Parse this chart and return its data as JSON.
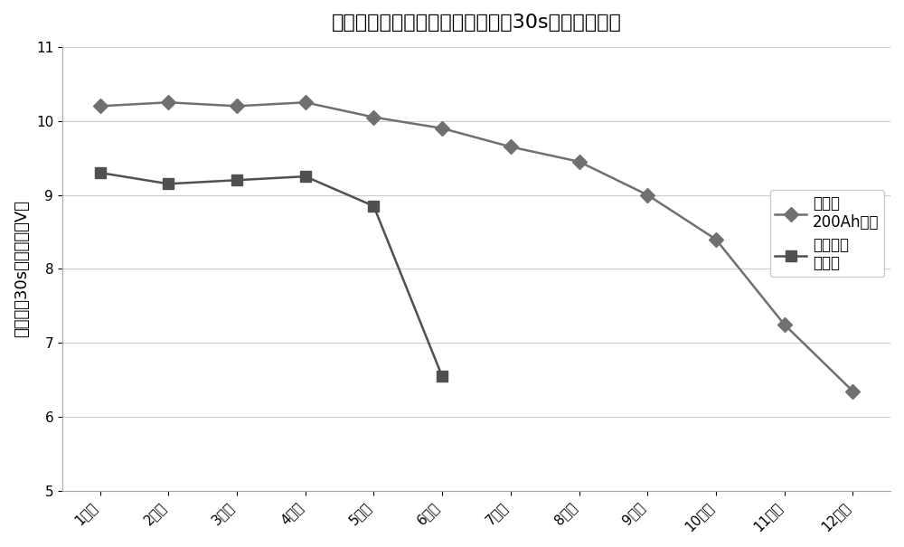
{
  "title": "电池循环放电各单元低温起动放电30s的电压变化图",
  "xlabel": "",
  "ylabel": "单元检查30s放电电压（V）",
  "xlabels": [
    "1单元",
    "2单元",
    "3单元",
    "4单元",
    "5单元",
    "6单元",
    "7单元",
    "8单元",
    "9单元",
    "10单元",
    "11单元",
    "12单元"
  ],
  "ylim": [
    5,
    11
  ],
  "yticks": [
    5,
    6,
    7,
    8,
    9,
    10,
    11
  ],
  "series1_label": "本发明\n200Ah电池",
  "series1_x": [
    1,
    2,
    3,
    4,
    5,
    6,
    7,
    8,
    9,
    10,
    11,
    12
  ],
  "series1_y": [
    10.2,
    10.25,
    10.2,
    10.25,
    10.05,
    9.9,
    9.65,
    9.45,
    9.0,
    8.4,
    7.25,
    6.35
  ],
  "series1_color": "#707070",
  "series1_marker": "D",
  "series1_markersize": 8,
  "series2_label": "传统富液\n型电池",
  "series2_x": [
    1,
    2,
    3,
    4,
    5,
    6
  ],
  "series2_y": [
    9.3,
    9.15,
    9.2,
    9.25,
    8.85,
    6.55
  ],
  "series2_color": "#505050",
  "series2_marker": "s",
  "series2_markersize": 8,
  "bg_color": "#ffffff",
  "grid_color": "#cccccc",
  "title_fontsize": 16,
  "label_fontsize": 13,
  "tick_fontsize": 11,
  "legend_fontsize": 12
}
